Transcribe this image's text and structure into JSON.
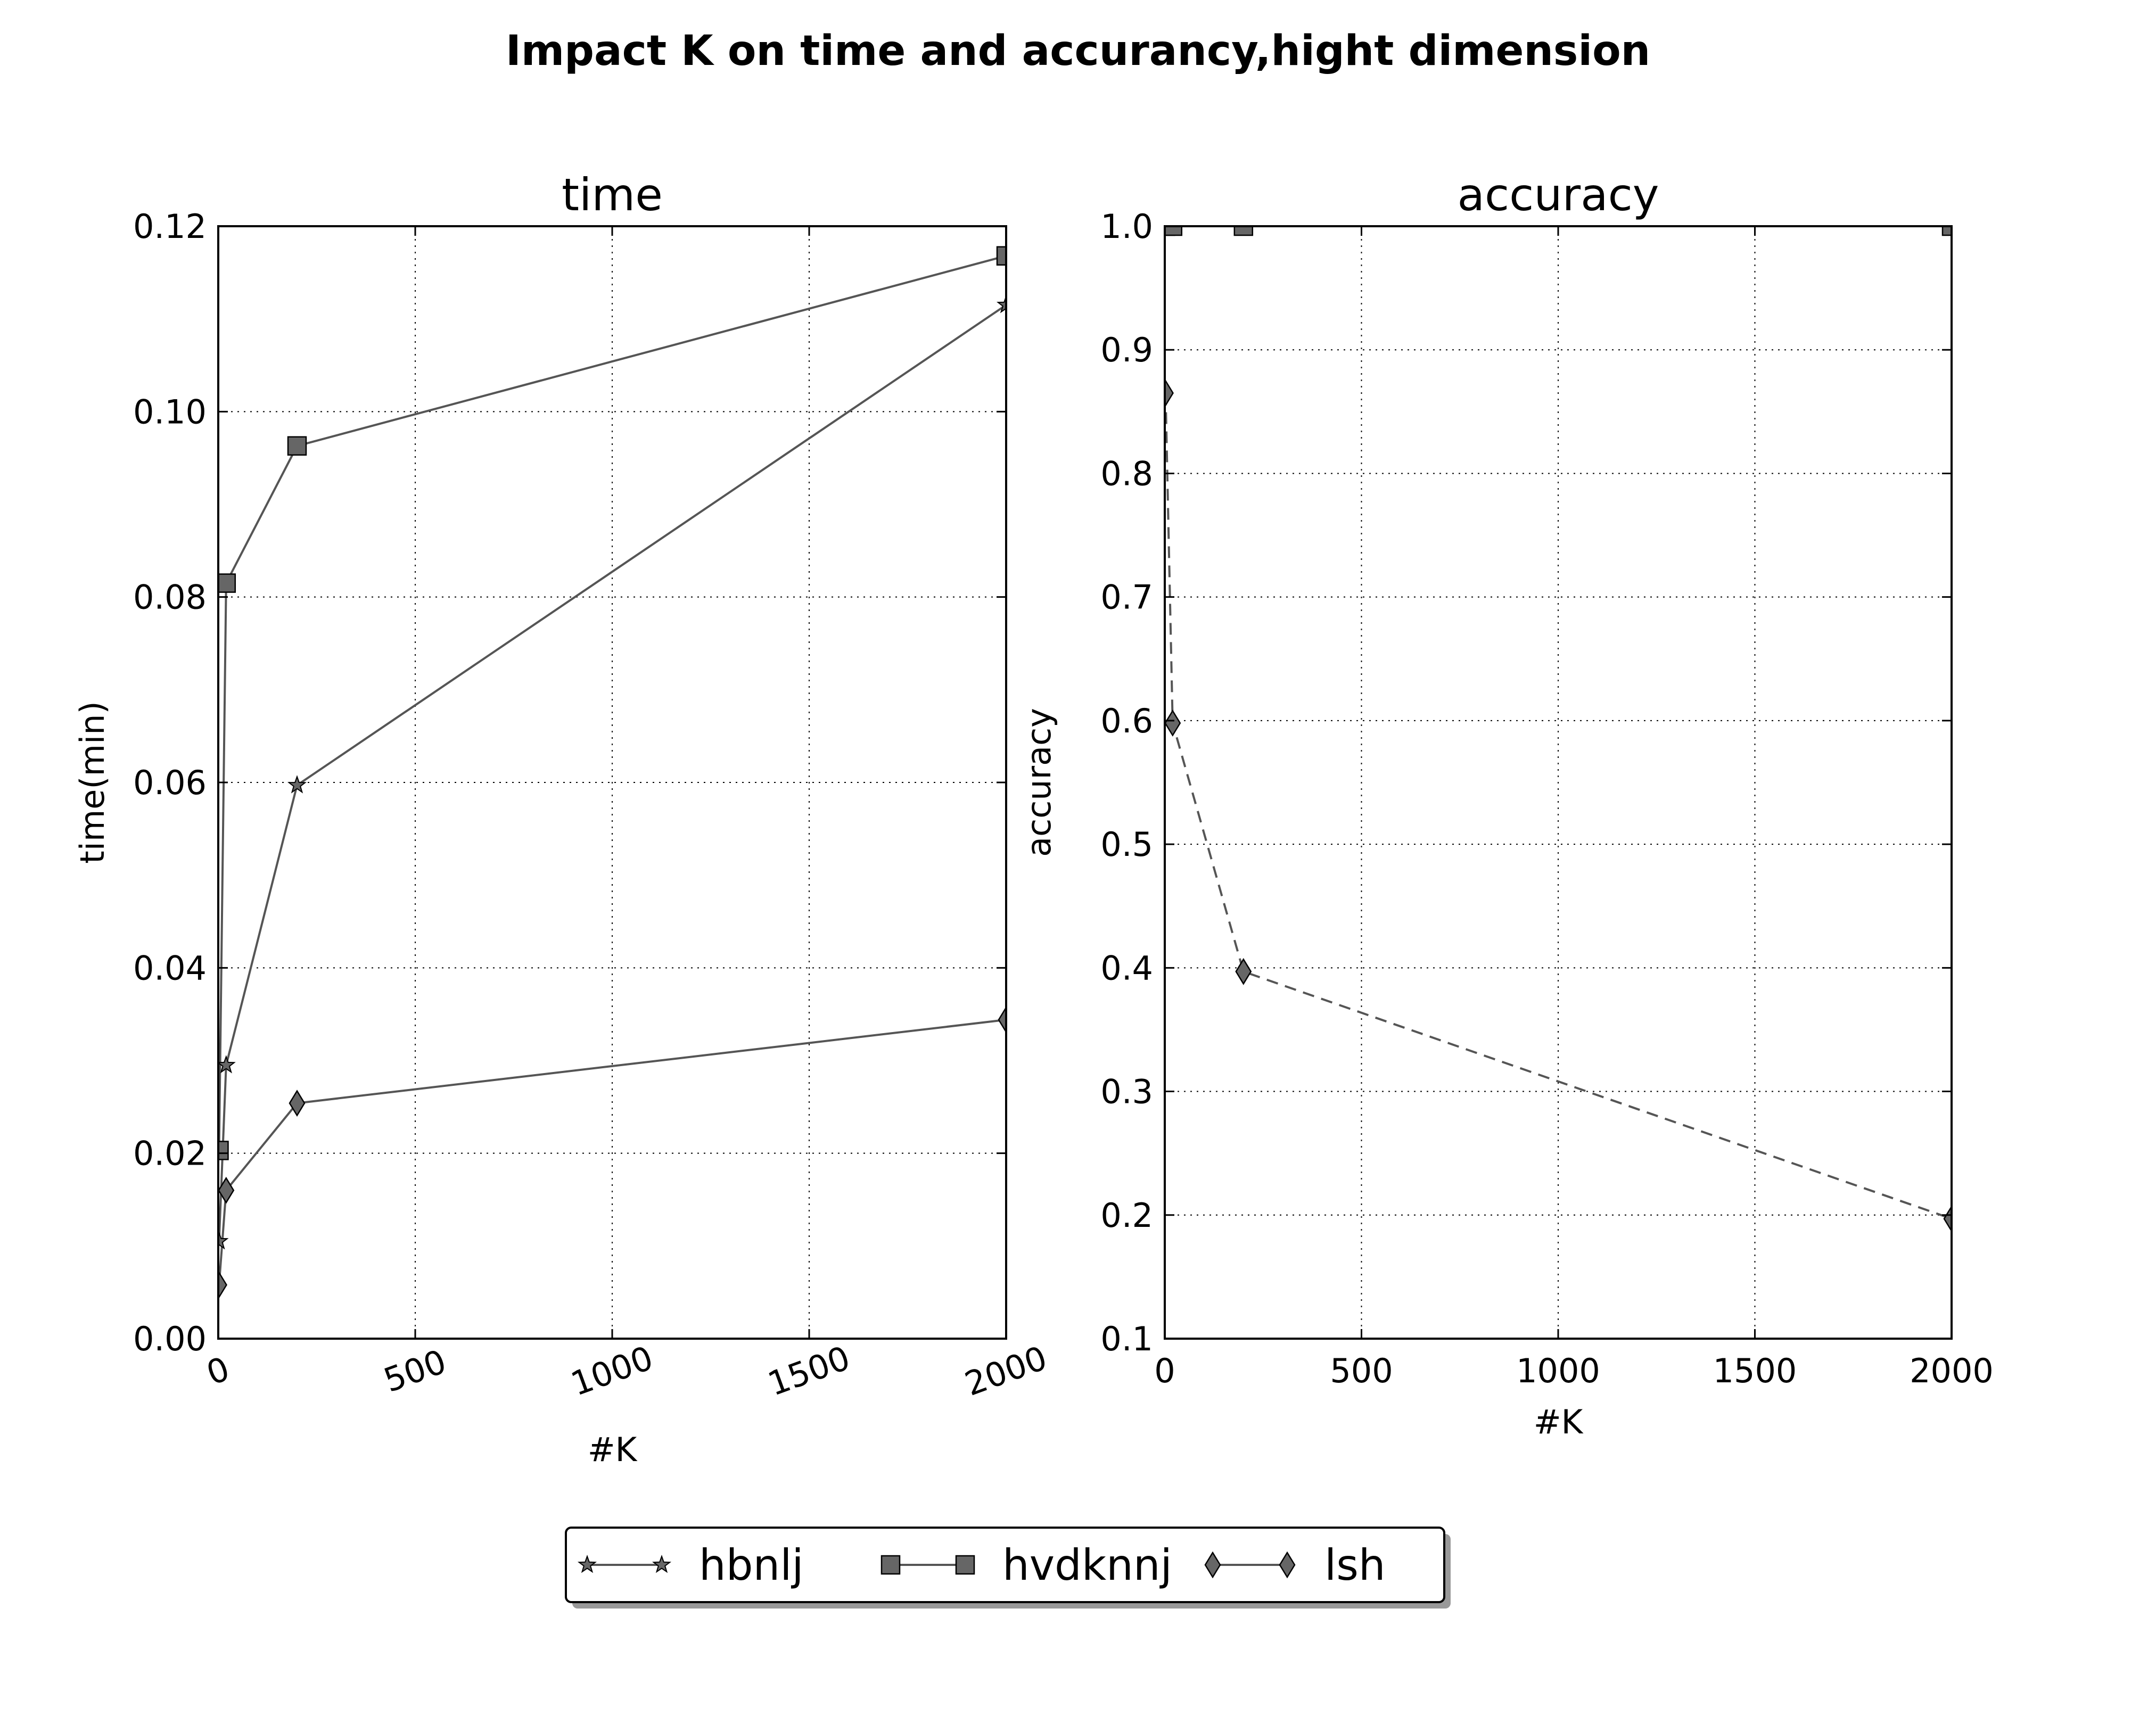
{
  "chart_data": {
    "suptitle": "Impact K on time and accurancy,hight dimension",
    "legend": {
      "placement": "bottom-center",
      "entries": [
        {
          "label": "hbnlj",
          "marker": "star"
        },
        {
          "label": "hvdknnj",
          "marker": "square"
        },
        {
          "label": "lsh",
          "marker": "thin-diamond"
        }
      ]
    },
    "line_color": "#555555",
    "marker_fill": "#666666",
    "panels": [
      {
        "type": "line",
        "title": "time",
        "xlabel": "#K",
        "ylabel": "time(min)",
        "xlim": [
          0,
          2000
        ],
        "ylim": [
          0,
          0.12
        ],
        "grid": true,
        "x_ticks": [
          "0",
          "500",
          "1000",
          "1500",
          "2000"
        ],
        "x_tick_values": [
          0,
          500,
          1000,
          1500,
          2000
        ],
        "x_tick_rotation_deg": 20,
        "y_ticks": [
          "0.00",
          "0.02",
          "0.04",
          "0.06",
          "0.08",
          "0.10",
          "0.12"
        ],
        "y_tick_values": [
          0,
          0.02,
          0.04,
          0.06,
          0.08,
          0.1,
          0.12
        ],
        "series": [
          {
            "name": "hbnlj",
            "marker": "star",
            "linestyle": "solid",
            "x": [
              2,
              20,
              200,
              2000
            ],
            "y": [
              0.0105,
              0.0295,
              0.0597,
              0.1115
            ]
          },
          {
            "name": "hvdknnj",
            "marker": "square",
            "linestyle": "solid",
            "x": [
              2,
              20,
              200,
              2000
            ],
            "y": [
              0.0203,
              0.0815,
              0.0963,
              0.1168
            ]
          },
          {
            "name": "lsh",
            "marker": "thin-diamond",
            "linestyle": "solid",
            "x": [
              2,
              20,
              200,
              2000
            ],
            "y": [
              0.0058,
              0.016,
              0.0254,
              0.0344
            ]
          }
        ]
      },
      {
        "type": "line",
        "title": "accuracy",
        "xlabel": "#K",
        "ylabel": "accuracy",
        "xlim": [
          0,
          2000
        ],
        "ylim": [
          0.1,
          1.0
        ],
        "grid": true,
        "x_ticks": [
          "0",
          "500",
          "1000",
          "1500",
          "2000"
        ],
        "x_tick_values": [
          0,
          500,
          1000,
          1500,
          2000
        ],
        "x_tick_rotation_deg": 0,
        "y_ticks": [
          "0.1",
          "0.2",
          "0.3",
          "0.4",
          "0.5",
          "0.6",
          "0.7",
          "0.8",
          "0.9",
          "1.0"
        ],
        "y_tick_values": [
          0.1,
          0.2,
          0.3,
          0.4,
          0.5,
          0.6,
          0.7,
          0.8,
          0.9,
          1.0
        ],
        "series": [
          {
            "name": "hbnlj",
            "marker": "star",
            "linestyle": "solid",
            "x": [
              2,
              20,
              200,
              2000
            ],
            "y": [
              1.0,
              1.0,
              1.0,
              1.0
            ]
          },
          {
            "name": "hvdknnj",
            "marker": "square",
            "linestyle": "solid",
            "x": [
              2,
              20,
              200,
              2000
            ],
            "y": [
              1.0,
              1.0,
              1.0,
              1.0
            ]
          },
          {
            "name": "lsh",
            "marker": "thin-diamond",
            "linestyle": "dashed",
            "x": [
              2,
              20,
              200,
              2000
            ],
            "y": [
              0.865,
              0.598,
              0.397,
              0.197
            ]
          }
        ]
      }
    ]
  }
}
